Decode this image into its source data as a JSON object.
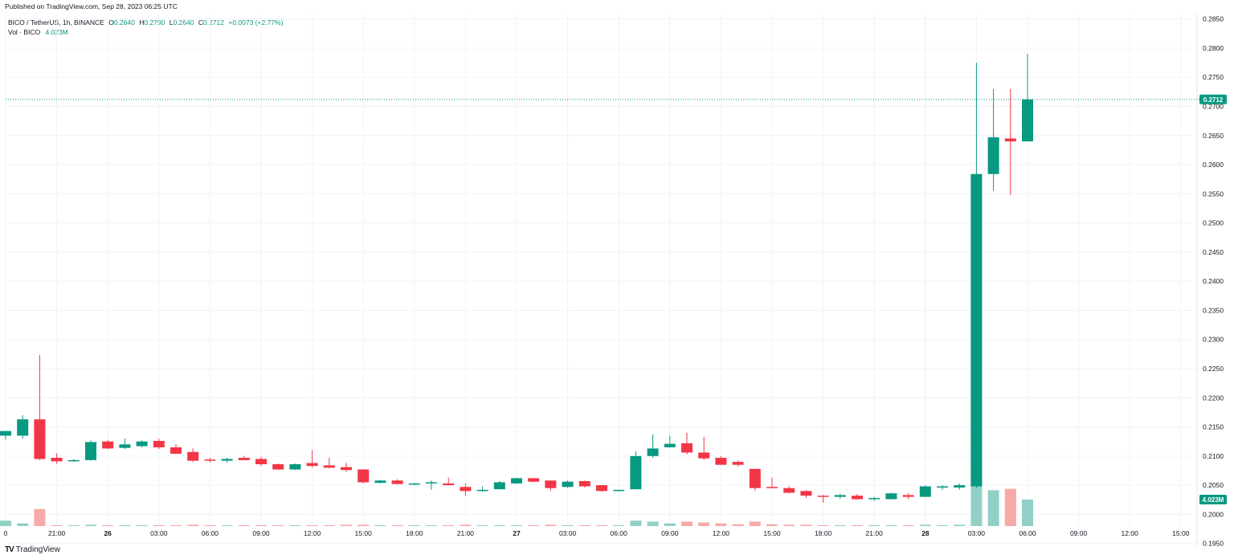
{
  "header": {
    "published": "Published on TradingView.com, Sep 28, 2023 06:25 UTC"
  },
  "legend": {
    "symbol": "BICO / TetherUS, 1h, BINANCE",
    "open_key": "O",
    "open": "0.2640",
    "high_key": "H",
    "high": "0.2790",
    "low_key": "L",
    "low": "0.2640",
    "close_key": "C",
    "close": "0.2712",
    "change": "+0.0073 (+2.77%)",
    "volume_name": "Vol · BICO",
    "volume_value": "4.023M"
  },
  "footer": {
    "brand": "TradingView",
    "logo_icon": "tradingview-logo-icon"
  },
  "colors": {
    "up": "#089981",
    "down": "#f23645",
    "vol_up": "#91d0c6",
    "vol_down": "#f7a9a7",
    "grid": "#f0f3fa",
    "axis_text": "#131722"
  },
  "chart_data": {
    "type": "candlestick",
    "timeframe": "1h",
    "y_scale": "linear",
    "ylim": [
      0.1944,
      0.2873
    ],
    "y_ticks": [
      "0.2850",
      "0.2800",
      "0.2750",
      "0.2700",
      "0.2650",
      "0.2600",
      "0.2550",
      "0.2500",
      "0.2450",
      "0.2400",
      "0.2350",
      "0.2300",
      "0.2250",
      "0.2200",
      "0.2150",
      "0.2100",
      "0.2050",
      "0.2000",
      "0.1950"
    ],
    "x_ticks": [
      "0",
      "21:00",
      "26",
      "03:00",
      "06:00",
      "09:00",
      "12:00",
      "15:00",
      "18:00",
      "21:00",
      "27",
      "03:00",
      "06:00",
      "09:00",
      "12:00",
      "15:00",
      "18:00",
      "21:00",
      "28",
      "03:00",
      "06:00",
      "09:00",
      "12:00",
      "15:00"
    ],
    "bold_x_ticks": [
      "26",
      "27",
      "28"
    ],
    "last_price_label": "0.2712",
    "last_price": 0.2712,
    "volume_label": "4.023M",
    "grid": true,
    "candles": [
      {
        "o": 0.2135,
        "h": 0.2143,
        "l": 0.2128,
        "c": 0.2143,
        "v": 0.12
      },
      {
        "o": 0.2135,
        "h": 0.217,
        "l": 0.213,
        "c": 0.2163,
        "v": 0.06
      },
      {
        "o": 0.2163,
        "h": 0.2273,
        "l": 0.2093,
        "c": 0.2095,
        "v": 0.38
      },
      {
        "o": 0.2097,
        "h": 0.2105,
        "l": 0.2087,
        "c": 0.2091,
        "v": 0.02
      },
      {
        "o": 0.2092,
        "h": 0.2095,
        "l": 0.209,
        "c": 0.2093,
        "v": 0.01
      },
      {
        "o": 0.2093,
        "h": 0.2127,
        "l": 0.2092,
        "c": 0.2124,
        "v": 0.03
      },
      {
        "o": 0.2125,
        "h": 0.2128,
        "l": 0.2112,
        "c": 0.2113,
        "v": 0.02
      },
      {
        "o": 0.2114,
        "h": 0.213,
        "l": 0.2112,
        "c": 0.212,
        "v": 0.02
      },
      {
        "o": 0.2117,
        "h": 0.2127,
        "l": 0.2115,
        "c": 0.2125,
        "v": 0.02
      },
      {
        "o": 0.2126,
        "h": 0.213,
        "l": 0.2112,
        "c": 0.2115,
        "v": 0.02
      },
      {
        "o": 0.2115,
        "h": 0.212,
        "l": 0.2103,
        "c": 0.2104,
        "v": 0.02
      },
      {
        "o": 0.2107,
        "h": 0.2113,
        "l": 0.209,
        "c": 0.2092,
        "v": 0.03
      },
      {
        "o": 0.2094,
        "h": 0.2097,
        "l": 0.2089,
        "c": 0.2092,
        "v": 0.01
      },
      {
        "o": 0.2092,
        "h": 0.2097,
        "l": 0.2089,
        "c": 0.2095,
        "v": 0.01
      },
      {
        "o": 0.2097,
        "h": 0.21,
        "l": 0.2093,
        "c": 0.2093,
        "v": 0.02
      },
      {
        "o": 0.2095,
        "h": 0.2099,
        "l": 0.2083,
        "c": 0.2086,
        "v": 0.02
      },
      {
        "o": 0.2086,
        "h": 0.2087,
        "l": 0.2076,
        "c": 0.2077,
        "v": 0.02
      },
      {
        "o": 0.2077,
        "h": 0.2087,
        "l": 0.2076,
        "c": 0.2086,
        "v": 0.01
      },
      {
        "o": 0.2088,
        "h": 0.211,
        "l": 0.208,
        "c": 0.2083,
        "v": 0.02
      },
      {
        "o": 0.2084,
        "h": 0.2097,
        "l": 0.2079,
        "c": 0.208,
        "v": 0.02
      },
      {
        "o": 0.2081,
        "h": 0.2088,
        "l": 0.2073,
        "c": 0.2076,
        "v": 0.03
      },
      {
        "o": 0.2077,
        "h": 0.2077,
        "l": 0.2053,
        "c": 0.2055,
        "v": 0.03
      },
      {
        "o": 0.2054,
        "h": 0.2059,
        "l": 0.2053,
        "c": 0.2058,
        "v": 0.02
      },
      {
        "o": 0.2058,
        "h": 0.206,
        "l": 0.2051,
        "c": 0.2052,
        "v": 0.02
      },
      {
        "o": 0.2052,
        "h": 0.2054,
        "l": 0.205,
        "c": 0.2053,
        "v": 0.01
      },
      {
        "o": 0.2053,
        "h": 0.2058,
        "l": 0.2042,
        "c": 0.2055,
        "v": 0.01
      },
      {
        "o": 0.2053,
        "h": 0.2063,
        "l": 0.205,
        "c": 0.205,
        "v": 0.02
      },
      {
        "o": 0.2047,
        "h": 0.2053,
        "l": 0.2032,
        "c": 0.204,
        "v": 0.03
      },
      {
        "o": 0.2041,
        "h": 0.2048,
        "l": 0.2039,
        "c": 0.2042,
        "v": 0.01
      },
      {
        "o": 0.2043,
        "h": 0.2057,
        "l": 0.2043,
        "c": 0.2055,
        "v": 0.02
      },
      {
        "o": 0.2053,
        "h": 0.2063,
        "l": 0.2052,
        "c": 0.2062,
        "v": 0.02
      },
      {
        "o": 0.2062,
        "h": 0.2062,
        "l": 0.2055,
        "c": 0.2056,
        "v": 0.02
      },
      {
        "o": 0.2058,
        "h": 0.2058,
        "l": 0.204,
        "c": 0.2045,
        "v": 0.03
      },
      {
        "o": 0.2047,
        "h": 0.2058,
        "l": 0.2045,
        "c": 0.2056,
        "v": 0.02
      },
      {
        "o": 0.2057,
        "h": 0.2058,
        "l": 0.2046,
        "c": 0.2048,
        "v": 0.02
      },
      {
        "o": 0.205,
        "h": 0.205,
        "l": 0.2039,
        "c": 0.204,
        "v": 0.02
      },
      {
        "o": 0.204,
        "h": 0.2042,
        "l": 0.2039,
        "c": 0.2042,
        "v": 0.01
      },
      {
        "o": 0.2043,
        "h": 0.2108,
        "l": 0.2043,
        "c": 0.21,
        "v": 0.12
      },
      {
        "o": 0.21,
        "h": 0.2137,
        "l": 0.2097,
        "c": 0.2113,
        "v": 0.1
      },
      {
        "o": 0.2115,
        "h": 0.2135,
        "l": 0.2115,
        "c": 0.2121,
        "v": 0.06
      },
      {
        "o": 0.2122,
        "h": 0.214,
        "l": 0.2103,
        "c": 0.2106,
        "v": 0.1
      },
      {
        "o": 0.2106,
        "h": 0.2133,
        "l": 0.2093,
        "c": 0.2096,
        "v": 0.08
      },
      {
        "o": 0.2097,
        "h": 0.21,
        "l": 0.2085,
        "c": 0.2085,
        "v": 0.06
      },
      {
        "o": 0.209,
        "h": 0.2093,
        "l": 0.2082,
        "c": 0.2085,
        "v": 0.04
      },
      {
        "o": 0.2078,
        "h": 0.2078,
        "l": 0.204,
        "c": 0.2045,
        "v": 0.1
      },
      {
        "o": 0.2047,
        "h": 0.2063,
        "l": 0.2045,
        "c": 0.2045,
        "v": 0.04
      },
      {
        "o": 0.2045,
        "h": 0.2048,
        "l": 0.2036,
        "c": 0.2037,
        "v": 0.03
      },
      {
        "o": 0.204,
        "h": 0.2042,
        "l": 0.2028,
        "c": 0.2032,
        "v": 0.03
      },
      {
        "o": 0.2032,
        "h": 0.2033,
        "l": 0.202,
        "c": 0.203,
        "v": 0.02
      },
      {
        "o": 0.203,
        "h": 0.2035,
        "l": 0.2027,
        "c": 0.2033,
        "v": 0.02
      },
      {
        "o": 0.2032,
        "h": 0.2035,
        "l": 0.2025,
        "c": 0.2026,
        "v": 0.02
      },
      {
        "o": 0.2026,
        "h": 0.203,
        "l": 0.2023,
        "c": 0.2028,
        "v": 0.02
      },
      {
        "o": 0.2026,
        "h": 0.2037,
        "l": 0.2026,
        "c": 0.2036,
        "v": 0.02
      },
      {
        "o": 0.2033,
        "h": 0.2036,
        "l": 0.2026,
        "c": 0.203,
        "v": 0.02
      },
      {
        "o": 0.203,
        "h": 0.205,
        "l": 0.203,
        "c": 0.2048,
        "v": 0.03
      },
      {
        "o": 0.2047,
        "h": 0.205,
        "l": 0.2042,
        "c": 0.2048,
        "v": 0.02
      },
      {
        "o": 0.2046,
        "h": 0.2053,
        "l": 0.2042,
        "c": 0.205,
        "v": 0.03
      },
      {
        "o": 0.2048,
        "h": 0.2775,
        "l": 0.2045,
        "c": 0.2584,
        "v": 2.86
      },
      {
        "o": 0.2584,
        "h": 0.273,
        "l": 0.2555,
        "c": 0.2647,
        "v": 0.8
      },
      {
        "o": 0.2645,
        "h": 0.273,
        "l": 0.2548,
        "c": 0.264,
        "v": 0.83
      },
      {
        "o": 0.264,
        "h": 0.279,
        "l": 0.264,
        "c": 0.2712,
        "v": 0.59
      }
    ]
  }
}
